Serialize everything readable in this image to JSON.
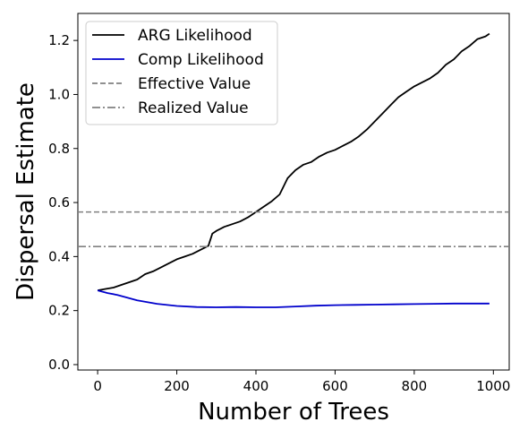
{
  "chart_data": {
    "type": "line",
    "xlabel": "Number of Trees",
    "ylabel": "Dispersal Estimate",
    "xlim": [
      -50,
      1040
    ],
    "ylim": [
      -0.02,
      1.3
    ],
    "xticks": [
      0,
      200,
      400,
      600,
      800,
      1000
    ],
    "yticks": [
      0.0,
      0.2,
      0.4,
      0.6,
      0.8,
      1.0,
      1.2
    ],
    "xtick_labels": [
      "0",
      "200",
      "400",
      "600",
      "800",
      "1000"
    ],
    "ytick_labels": [
      "0.0",
      "0.2",
      "0.4",
      "0.6",
      "0.8",
      "1.0",
      "1.2"
    ],
    "grid": false,
    "legend_position": "top-left",
    "series": [
      {
        "name": "ARG Likelihood",
        "color": "#000000",
        "style": "solid",
        "x": [
          0,
          20,
          40,
          60,
          80,
          100,
          120,
          140,
          160,
          180,
          200,
          220,
          240,
          260,
          280,
          290,
          300,
          320,
          340,
          360,
          380,
          400,
          420,
          440,
          460,
          480,
          500,
          520,
          540,
          560,
          580,
          600,
          620,
          640,
          660,
          680,
          700,
          720,
          740,
          760,
          780,
          800,
          820,
          840,
          860,
          880,
          900,
          920,
          940,
          960,
          980,
          990
        ],
        "y": [
          0.275,
          0.28,
          0.285,
          0.295,
          0.305,
          0.315,
          0.335,
          0.345,
          0.36,
          0.375,
          0.39,
          0.4,
          0.41,
          0.425,
          0.44,
          0.485,
          0.495,
          0.51,
          0.52,
          0.53,
          0.545,
          0.565,
          0.585,
          0.605,
          0.63,
          0.69,
          0.72,
          0.74,
          0.75,
          0.77,
          0.785,
          0.795,
          0.81,
          0.825,
          0.845,
          0.87,
          0.9,
          0.93,
          0.96,
          0.99,
          1.01,
          1.03,
          1.045,
          1.06,
          1.08,
          1.11,
          1.13,
          1.16,
          1.18,
          1.205,
          1.215,
          1.225
        ]
      },
      {
        "name": "Comp Likelihood",
        "color": "#0000cc",
        "style": "solid",
        "x": [
          0,
          25,
          50,
          75,
          100,
          150,
          200,
          250,
          300,
          350,
          400,
          450,
          500,
          550,
          600,
          650,
          700,
          750,
          800,
          850,
          900,
          950,
          990
        ],
        "y": [
          0.275,
          0.265,
          0.258,
          0.248,
          0.238,
          0.225,
          0.217,
          0.213,
          0.212,
          0.213,
          0.212,
          0.212,
          0.215,
          0.218,
          0.22,
          0.221,
          0.222,
          0.223,
          0.224,
          0.225,
          0.226,
          0.226,
          0.226
        ]
      },
      {
        "name": "Effective Value",
        "color": "#808080",
        "style": "dashed",
        "value": 0.565
      },
      {
        "name": "Realized Value",
        "color": "#808080",
        "style": "dashdot",
        "value": 0.437
      }
    ]
  }
}
